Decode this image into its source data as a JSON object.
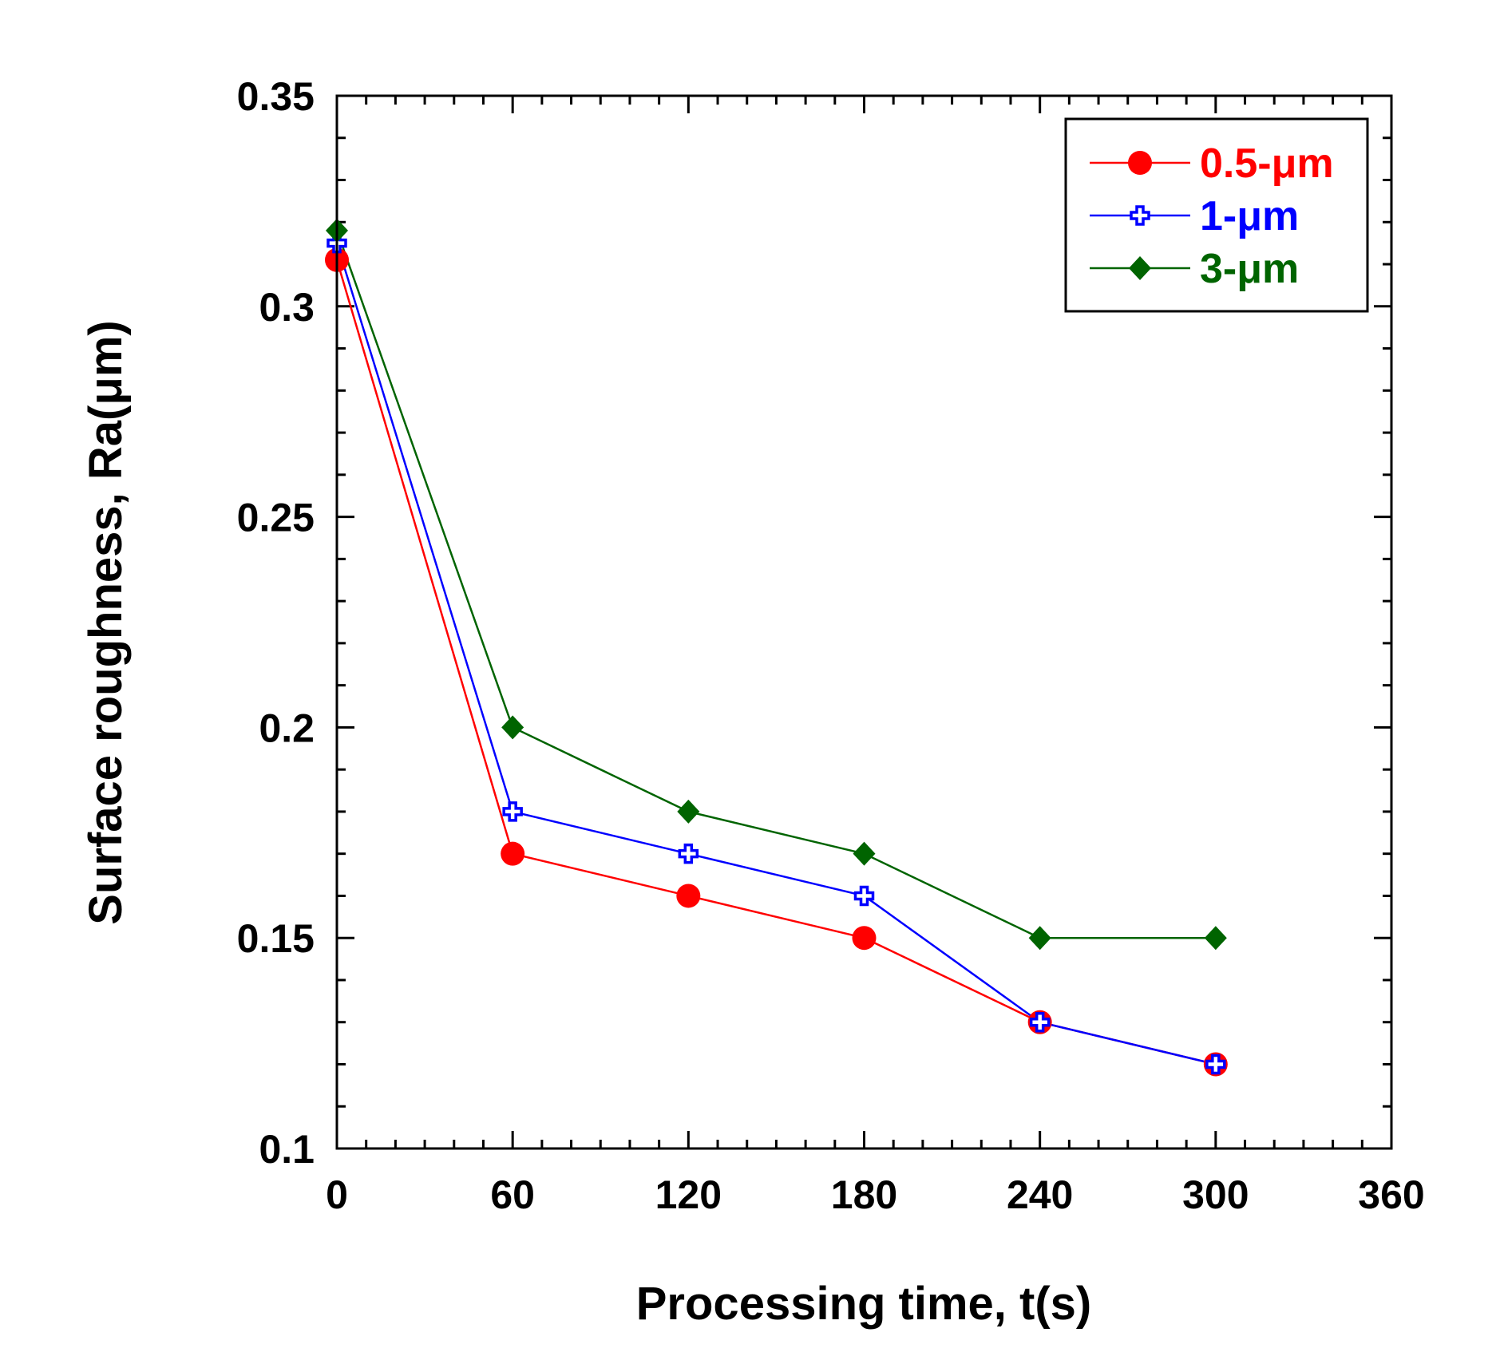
{
  "chart_data": {
    "type": "line",
    "title": "",
    "xlabel": "Processing time, t(s)",
    "ylabel": "Surface roughness, Ra(μm)",
    "xlim": [
      0,
      360
    ],
    "ylim": [
      0.1,
      0.35
    ],
    "xticks": [
      0,
      60,
      120,
      180,
      240,
      300,
      360
    ],
    "xtick_labels": [
      "0",
      "60",
      "120",
      "180",
      "240",
      "300",
      "360"
    ],
    "yticks": [
      0.1,
      0.15,
      0.2,
      0.25,
      0.3,
      0.35
    ],
    "ytick_labels": [
      "0.1",
      "0.15",
      "0.2",
      "0.25",
      "0.3",
      "0.35"
    ],
    "grid": false,
    "legend_position": "top-right",
    "x": [
      0,
      60,
      120,
      180,
      240,
      300
    ],
    "series": [
      {
        "name": "0.5-μm",
        "color": "#ff0000",
        "marker": "circle",
        "values": [
          0.311,
          0.17,
          0.16,
          0.15,
          0.13,
          0.12
        ]
      },
      {
        "name": "1-μm",
        "color": "#0000ff",
        "marker": "open-cross",
        "values": [
          0.315,
          0.18,
          0.17,
          0.16,
          0.13,
          0.12
        ]
      },
      {
        "name": "3-μm",
        "color": "#006400",
        "marker": "diamond",
        "values": [
          0.318,
          0.2,
          0.18,
          0.17,
          0.15,
          0.15
        ]
      }
    ]
  }
}
